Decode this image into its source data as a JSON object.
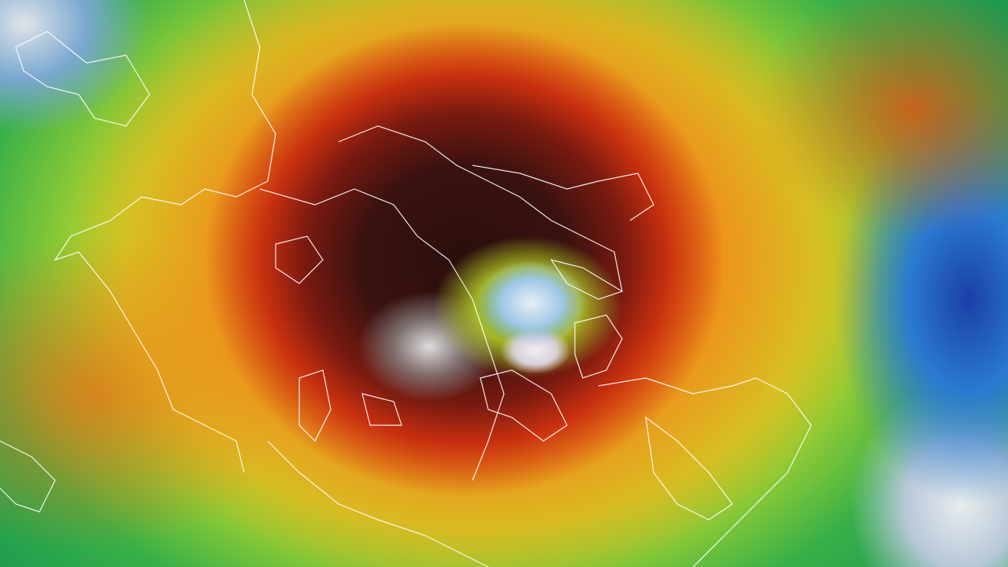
{
  "image": {
    "subject": "typhoon-satellite-infrared",
    "colors": {
      "eye": "#e8eef6",
      "eyewall": "#2a0e0c",
      "inner_band": "#c8300f",
      "outer_band": "#f08a1a",
      "periphery": "#c8dc28",
      "edge_green": "#1e9a50",
      "cold_cloud_blue": "#1b3fa8",
      "coastline": "#ffffff"
    }
  }
}
